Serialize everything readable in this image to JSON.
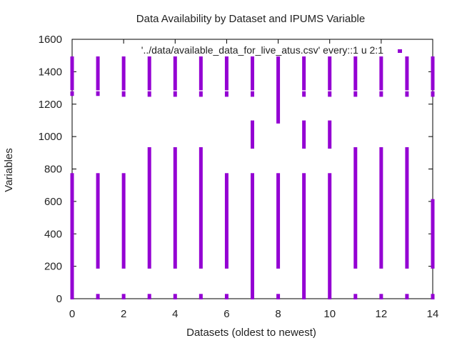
{
  "chart_data": {
    "type": "scatter",
    "title": "Data Availability by Dataset and IPUMS Variable",
    "xlabel": "Datasets (oldest to newest)",
    "ylabel": "Variables",
    "xlim": [
      0,
      14
    ],
    "ylim": [
      0,
      1600
    ],
    "xticks": [
      "0",
      "2",
      "4",
      "6",
      "8",
      "10",
      "12",
      "14"
    ],
    "yticks": [
      "0",
      "200",
      "400",
      "600",
      "800",
      "1000",
      "1200",
      "1400",
      "1600"
    ],
    "grid": false,
    "legend_position": "top-right",
    "series": [
      {
        "name": "'../data/available_data_for_live_atus.csv' every::1 u 2:1",
        "color": "#9400D3",
        "marker": "square",
        "ranges": [
          {
            "x": 0,
            "y": [
              [
                0,
                25
              ],
              [
                10,
                770
              ],
              [
                1255,
                1275
              ],
              [
                1290,
                1490
              ]
            ]
          },
          {
            "x": 1,
            "y": [
              [
                0,
                25
              ],
              [
                190,
                770
              ],
              [
                1255,
                1275
              ],
              [
                1290,
                1490
              ]
            ]
          },
          {
            "x": 2,
            "y": [
              [
                0,
                25
              ],
              [
                190,
                770
              ],
              [
                1250,
                1275
              ],
              [
                1290,
                1490
              ]
            ]
          },
          {
            "x": 3,
            "y": [
              [
                0,
                25
              ],
              [
                190,
                930
              ],
              [
                1250,
                1275
              ],
              [
                1290,
                1490
              ]
            ]
          },
          {
            "x": 4,
            "y": [
              [
                0,
                25
              ],
              [
                190,
                930
              ],
              [
                1250,
                1275
              ],
              [
                1290,
                1490
              ]
            ]
          },
          {
            "x": 5,
            "y": [
              [
                0,
                25
              ],
              [
                190,
                930
              ],
              [
                1250,
                1275
              ],
              [
                1290,
                1490
              ]
            ]
          },
          {
            "x": 6,
            "y": [
              [
                0,
                25
              ],
              [
                190,
                770
              ],
              [
                1250,
                1275
              ],
              [
                1290,
                1490
              ]
            ]
          },
          {
            "x": 7,
            "y": [
              [
                0,
                770
              ],
              [
                930,
                1095
              ],
              [
                1250,
                1275
              ],
              [
                1290,
                1490
              ]
            ]
          },
          {
            "x": 8,
            "y": [
              [
                0,
                25
              ],
              [
                190,
                770
              ],
              [
                1085,
                1490
              ]
            ]
          },
          {
            "x": 9,
            "y": [
              [
                0,
                770
              ],
              [
                930,
                1095
              ],
              [
                1250,
                1275
              ],
              [
                1290,
                1490
              ]
            ]
          },
          {
            "x": 10,
            "y": [
              [
                0,
                770
              ],
              [
                930,
                1095
              ],
              [
                1250,
                1275
              ],
              [
                1290,
                1490
              ]
            ]
          },
          {
            "x": 11,
            "y": [
              [
                0,
                25
              ],
              [
                190,
                930
              ],
              [
                1250,
                1275
              ],
              [
                1290,
                1490
              ]
            ]
          },
          {
            "x": 12,
            "y": [
              [
                0,
                25
              ],
              [
                190,
                930
              ],
              [
                1250,
                1275
              ],
              [
                1290,
                1490
              ]
            ]
          },
          {
            "x": 13,
            "y": [
              [
                0,
                25
              ],
              [
                190,
                930
              ],
              [
                1250,
                1275
              ],
              [
                1290,
                1490
              ]
            ]
          },
          {
            "x": 14,
            "y": [
              [
                0,
                25
              ],
              [
                190,
                610
              ],
              [
                1250,
                1275
              ],
              [
                1290,
                1490
              ]
            ]
          }
        ]
      }
    ]
  }
}
